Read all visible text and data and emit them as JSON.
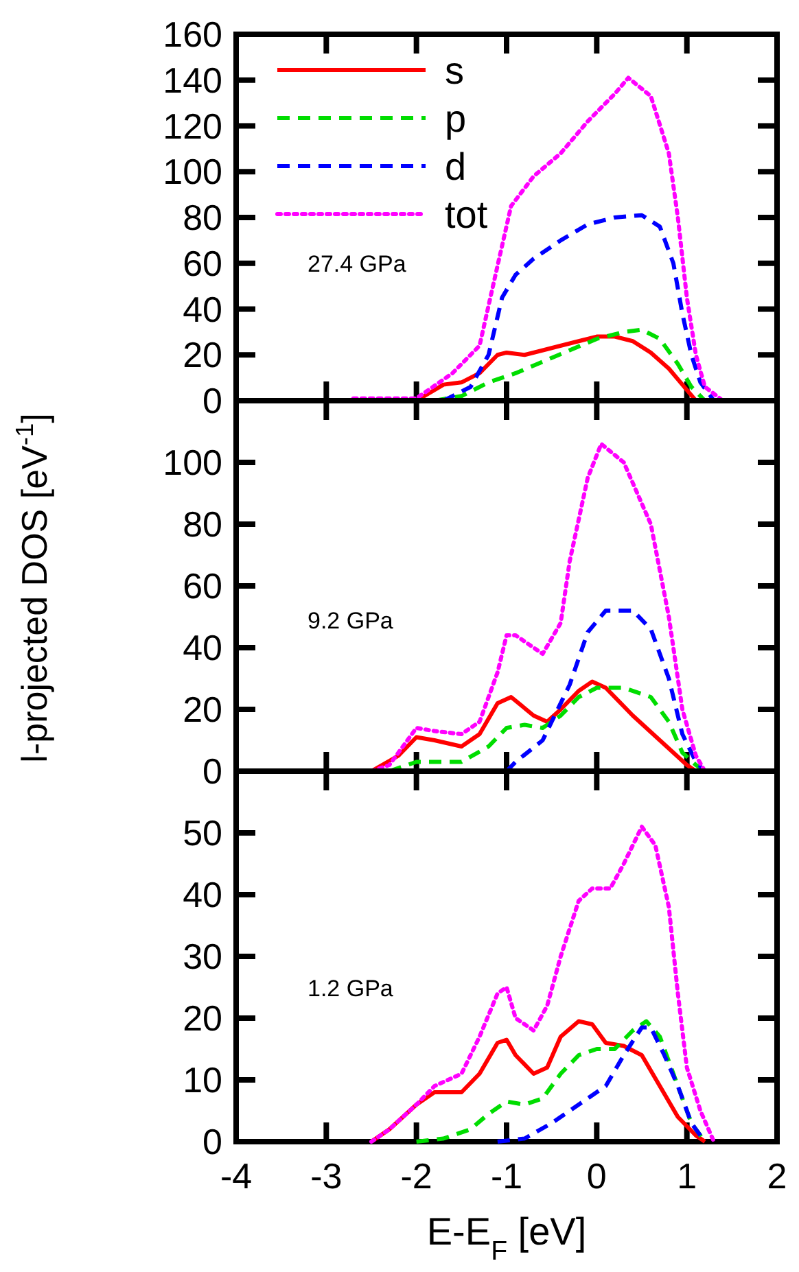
{
  "chart_data": [
    {
      "type": "line",
      "xlim": [
        -4,
        2
      ],
      "xticks": [
        -4,
        -3,
        -2,
        -1,
        0,
        1,
        2
      ],
      "ylim": [
        0,
        160
      ],
      "yticks": [
        0,
        20,
        40,
        60,
        80,
        100,
        120,
        140,
        160
      ],
      "tick_labels": "y",
      "legend": "top left",
      "annotations": [
        "27.4 GPa"
      ],
      "series": [
        {
          "name": "s",
          "color": "#ff0000",
          "line_style": "solid",
          "x": [
            -2.7,
            -2,
            -1.7,
            -1.5,
            -1.3,
            -1.1,
            -1,
            -0.8,
            -0.5,
            -0.2,
            0,
            0.2,
            0.4,
            0.6,
            0.8,
            0.95,
            1.1
          ],
          "values": [
            0,
            0,
            7,
            8,
            12,
            20,
            21,
            20,
            23,
            26,
            28,
            28,
            26,
            21,
            14,
            7,
            0
          ]
        },
        {
          "name": "p",
          "color": "#00dd00",
          "line_style": "dashed",
          "x": [
            -1.8,
            -1.5,
            -1.2,
            -0.9,
            -0.6,
            -0.3,
            0,
            0.3,
            0.5,
            0.7,
            0.9,
            1.05,
            1.2
          ],
          "values": [
            0,
            2,
            8,
            12,
            17,
            22,
            27,
            30,
            31,
            27,
            16,
            6,
            0
          ]
        },
        {
          "name": "d",
          "color": "#0000ff",
          "line_style": "dashed",
          "x": [
            -1.7,
            -1.4,
            -1.2,
            -1.05,
            -0.9,
            -0.7,
            -0.4,
            -0.1,
            0.2,
            0.5,
            0.7,
            0.85,
            0.95,
            1.05,
            1.15,
            1.3
          ],
          "values": [
            0,
            6,
            20,
            45,
            55,
            62,
            70,
            77,
            80,
            81,
            76,
            60,
            38,
            20,
            8,
            0
          ]
        },
        {
          "name": "tot",
          "color": "#ff00ff",
          "line_style": "dotted",
          "x": [
            -2.7,
            -2,
            -1.6,
            -1.3,
            -1.1,
            -0.95,
            -0.7,
            -0.4,
            -0.1,
            0.2,
            0.35,
            0.6,
            0.8,
            0.9,
            1,
            1.1,
            1.2,
            1.4
          ],
          "values": [
            1,
            1,
            12,
            24,
            59,
            85,
            98,
            108,
            122,
            134,
            141,
            133,
            108,
            80,
            45,
            20,
            6,
            0
          ]
        }
      ]
    },
    {
      "type": "line",
      "xlim": [
        -4,
        2
      ],
      "xticks": [
        -4,
        -3,
        -2,
        -1,
        0,
        1,
        2
      ],
      "ylim": [
        0,
        120
      ],
      "yticks": [
        0,
        20,
        40,
        60,
        80,
        100
      ],
      "tick_labels": "y",
      "ylabel": "l-projected DOS [eV$^{-1}$]",
      "annotations": [
        "9.2 GPa"
      ],
      "series": [
        {
          "color": "#ff0000",
          "line_style": "solid",
          "x": [
            -2.5,
            -2.2,
            -2,
            -1.8,
            -1.5,
            -1.3,
            -1.1,
            -0.95,
            -0.7,
            -0.55,
            -0.4,
            -0.2,
            -0.05,
            0.1,
            0.4,
            0.7,
            1,
            1.1
          ],
          "values": [
            0,
            5,
            11,
            10,
            8,
            12,
            22,
            24,
            18,
            16,
            20,
            26,
            29,
            27,
            18,
            10,
            2,
            0
          ]
        },
        {
          "color": "#00dd00",
          "line_style": "dashed",
          "x": [
            -2.3,
            -2,
            -1.5,
            -1.2,
            -1,
            -0.8,
            -0.6,
            -0.4,
            -0.2,
            0,
            0.3,
            0.6,
            0.8,
            0.95,
            1.1,
            1.2
          ],
          "values": [
            0,
            3,
            3,
            8,
            14,
            15,
            14,
            18,
            24,
            27,
            27,
            24,
            16,
            6,
            2,
            0
          ]
        },
        {
          "color": "#0000ff",
          "line_style": "dashed",
          "x": [
            -1,
            -0.9,
            -0.6,
            -0.5,
            -0.3,
            -0.1,
            0.1,
            0.4,
            0.6,
            0.8,
            0.95,
            1.1,
            1.2
          ],
          "values": [
            0,
            3,
            10,
            16,
            28,
            45,
            52,
            52,
            46,
            30,
            12,
            3,
            0
          ]
        },
        {
          "color": "#ff00ff",
          "line_style": "dotted",
          "x": [
            -2.5,
            -2.3,
            -2,
            -1.8,
            -1.5,
            -1.3,
            -1.1,
            -1,
            -0.9,
            -0.6,
            -0.4,
            -0.3,
            -0.1,
            0.05,
            0.3,
            0.6,
            0.8,
            0.95,
            1.1,
            1.2
          ],
          "values": [
            0,
            2,
            14,
            13,
            12,
            16,
            32,
            44,
            44,
            38,
            48,
            68,
            95,
            106,
            100,
            80,
            50,
            20,
            5,
            0
          ]
        }
      ]
    },
    {
      "type": "line",
      "xlim": [
        -4,
        2
      ],
      "xticks": [
        -4,
        -3,
        -2,
        -1,
        0,
        1,
        2
      ],
      "ylim": [
        0,
        60
      ],
      "yticks": [
        0,
        10,
        20,
        30,
        40,
        50
      ],
      "xlabel": "E-E$_{F}$ [eV]",
      "annotations": [
        "1.2 GPa"
      ],
      "series": [
        {
          "color": "#ff0000",
          "line_style": "solid",
          "x": [
            -2.5,
            -2.3,
            -2,
            -1.8,
            -1.5,
            -1.3,
            -1.1,
            -1,
            -0.9,
            -0.7,
            -0.55,
            -0.4,
            -0.2,
            -0.05,
            0.1,
            0.3,
            0.5,
            0.7,
            0.9,
            1.1,
            1.2
          ],
          "values": [
            0,
            2,
            6,
            8,
            8,
            11,
            16,
            16.5,
            14,
            11,
            12,
            17,
            19.5,
            19,
            16,
            15.5,
            14,
            9,
            4,
            1,
            0
          ]
        },
        {
          "color": "#00dd00",
          "line_style": "dashed",
          "x": [
            -2,
            -1.7,
            -1.4,
            -1.2,
            -1,
            -0.8,
            -0.6,
            -0.4,
            -0.2,
            0,
            0.2,
            0.4,
            0.55,
            0.7,
            0.9,
            1.05,
            1.2
          ],
          "values": [
            0,
            0.5,
            2,
            4.5,
            6.5,
            6,
            7,
            11,
            14,
            15,
            15,
            18,
            19.5,
            17,
            9,
            3,
            0
          ]
        },
        {
          "color": "#0000ff",
          "line_style": "dashed",
          "x": [
            -1.1,
            -0.8,
            -0.5,
            -0.3,
            -0.1,
            0.1,
            0.3,
            0.5,
            0.6,
            0.75,
            0.9,
            1.05,
            1.2
          ],
          "values": [
            0,
            0.5,
            3,
            5,
            7,
            9,
            14,
            18.5,
            18.5,
            14,
            9,
            3,
            0
          ]
        },
        {
          "color": "#ff00ff",
          "line_style": "dotted",
          "x": [
            -2.5,
            -2.3,
            -2,
            -1.8,
            -1.5,
            -1.3,
            -1.1,
            -1,
            -0.9,
            -0.7,
            -0.55,
            -0.4,
            -0.2,
            -0.05,
            0.15,
            0.3,
            0.5,
            0.65,
            0.8,
            0.9,
            1,
            1.15,
            1.3
          ],
          "values": [
            0,
            2,
            6,
            9,
            11,
            17,
            24,
            25,
            20,
            18,
            22,
            30,
            39,
            41,
            41,
            45,
            51,
            48,
            38,
            24,
            12,
            5,
            0
          ]
        }
      ]
    }
  ]
}
